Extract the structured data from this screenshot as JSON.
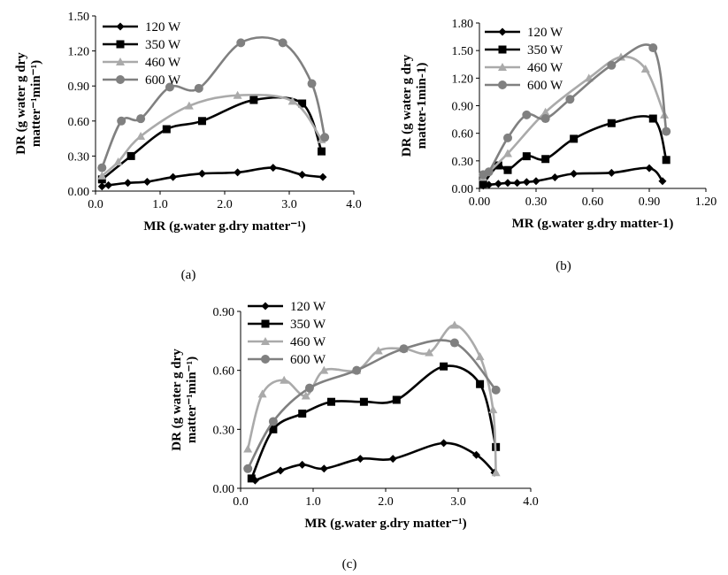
{
  "chart_data": [
    {
      "type": "line",
      "panel_label": "(a)",
      "xlabel": "MR (g.water g.dry matter⁻¹)",
      "ylabel_lines": [
        "DR (g water g dry",
        "matter⁻¹min⁻¹)"
      ],
      "xlim": [
        0,
        4
      ],
      "ylim": [
        0,
        1.5
      ],
      "xticks": [
        "0.0",
        "1.0",
        "2.0",
        "3.0",
        "4.0"
      ],
      "yticks": [
        "0.00",
        "0.30",
        "0.60",
        "0.90",
        "1.20",
        "1.50"
      ],
      "legend_position": "top-left",
      "series": [
        {
          "name": "120 W",
          "color": "#000000",
          "marker": "diamond",
          "x": [
            0.1,
            0.2,
            0.5,
            0.8,
            1.2,
            1.65,
            2.2,
            2.75,
            3.2,
            3.52
          ],
          "y": [
            0.04,
            0.05,
            0.07,
            0.08,
            0.12,
            0.15,
            0.16,
            0.2,
            0.14,
            0.12
          ]
        },
        {
          "name": "350 W",
          "color": "#000000",
          "marker": "square",
          "x": [
            0.1,
            0.55,
            1.1,
            1.65,
            2.45,
            3.2,
            3.5
          ],
          "y": [
            0.1,
            0.3,
            0.53,
            0.6,
            0.78,
            0.75,
            0.34
          ]
        },
        {
          "name": "460 W",
          "color": "#aaaaaa",
          "marker": "triangle",
          "x": [
            0.1,
            0.35,
            0.7,
            1.45,
            2.2,
            3.05,
            3.5
          ],
          "y": [
            0.13,
            0.25,
            0.47,
            0.73,
            0.82,
            0.77,
            0.44
          ]
        },
        {
          "name": "600 W",
          "color": "#808080",
          "marker": "circle",
          "x": [
            0.1,
            0.4,
            0.7,
            1.15,
            1.6,
            2.25,
            2.9,
            3.35,
            3.55
          ],
          "y": [
            0.2,
            0.6,
            0.62,
            0.89,
            0.88,
            1.27,
            1.27,
            0.92,
            0.46
          ]
        }
      ]
    },
    {
      "type": "line",
      "panel_label": "(b)",
      "xlabel": "MR (g.water g.dry matter-1)",
      "ylabel_lines": [
        "DR (g water g dry",
        "matter-1min-1)"
      ],
      "xlim": [
        0,
        1.2
      ],
      "ylim": [
        0,
        1.8
      ],
      "xticks": [
        "0.00",
        "0.30",
        "0.60",
        "0.90",
        "1.20"
      ],
      "yticks": [
        "0.00",
        "0.30",
        "0.60",
        "0.90",
        "1.20",
        "1.50",
        "1.80"
      ],
      "legend_position": "top-left",
      "series": [
        {
          "name": "120 W",
          "color": "#000000",
          "marker": "diamond",
          "x": [
            0.02,
            0.05,
            0.1,
            0.15,
            0.2,
            0.25,
            0.3,
            0.4,
            0.5,
            0.7,
            0.9,
            0.97
          ],
          "y": [
            0.03,
            0.04,
            0.05,
            0.06,
            0.06,
            0.07,
            0.08,
            0.12,
            0.16,
            0.17,
            0.22,
            0.08
          ]
        },
        {
          "name": "350 W",
          "color": "#000000",
          "marker": "square",
          "x": [
            0.02,
            0.1,
            0.15,
            0.25,
            0.35,
            0.5,
            0.7,
            0.92,
            0.99
          ],
          "y": [
            0.05,
            0.25,
            0.2,
            0.35,
            0.32,
            0.54,
            0.71,
            0.76,
            0.31
          ]
        },
        {
          "name": "460 W",
          "color": "#aaaaaa",
          "marker": "triangle",
          "x": [
            0.02,
            0.15,
            0.35,
            0.58,
            0.75,
            0.88,
            0.98
          ],
          "y": [
            0.12,
            0.38,
            0.83,
            1.2,
            1.43,
            1.3,
            0.8
          ]
        },
        {
          "name": "600 W",
          "color": "#808080",
          "marker": "circle",
          "x": [
            0.02,
            0.05,
            0.15,
            0.25,
            0.35,
            0.48,
            0.7,
            0.92,
            0.99
          ],
          "y": [
            0.15,
            0.18,
            0.55,
            0.8,
            0.76,
            0.97,
            1.34,
            1.53,
            0.62
          ]
        }
      ]
    },
    {
      "type": "line",
      "panel_label": "(c)",
      "xlabel": "MR (g.water g.dry matter⁻¹)",
      "ylabel_lines": [
        "DR (g water g dry",
        "matter⁻¹min⁻¹)"
      ],
      "xlim": [
        0,
        4
      ],
      "ylim": [
        0,
        0.9
      ],
      "xticks": [
        "0.0",
        "1.0",
        "2.0",
        "3.0",
        "4.0"
      ],
      "yticks": [
        "0.00",
        "0.30",
        "0.60",
        "0.90"
      ],
      "legend_position": "top-left",
      "series": [
        {
          "name": "120 W",
          "color": "#000000",
          "marker": "diamond",
          "x": [
            0.2,
            0.55,
            0.85,
            1.15,
            1.65,
            2.1,
            2.8,
            3.25,
            3.5
          ],
          "y": [
            0.04,
            0.09,
            0.12,
            0.1,
            0.15,
            0.15,
            0.23,
            0.17,
            0.08
          ]
        },
        {
          "name": "350 W",
          "color": "#000000",
          "marker": "square",
          "x": [
            0.15,
            0.45,
            0.85,
            1.25,
            1.7,
            2.15,
            2.8,
            3.3,
            3.52
          ],
          "y": [
            0.05,
            0.3,
            0.38,
            0.44,
            0.44,
            0.45,
            0.62,
            0.53,
            0.21
          ]
        },
        {
          "name": "460 W",
          "color": "#aaaaaa",
          "marker": "triangle",
          "x": [
            0.1,
            0.3,
            0.6,
            0.9,
            1.15,
            1.6,
            1.9,
            2.25,
            2.6,
            2.95,
            3.3,
            3.48,
            3.52
          ],
          "y": [
            0.2,
            0.48,
            0.55,
            0.47,
            0.6,
            0.6,
            0.7,
            0.71,
            0.69,
            0.83,
            0.67,
            0.4,
            0.08
          ]
        },
        {
          "name": "600 W",
          "color": "#808080",
          "marker": "circle",
          "x": [
            0.1,
            0.45,
            0.95,
            1.6,
            2.25,
            2.95,
            3.52
          ],
          "y": [
            0.1,
            0.34,
            0.51,
            0.6,
            0.71,
            0.74,
            0.5
          ]
        }
      ]
    }
  ]
}
